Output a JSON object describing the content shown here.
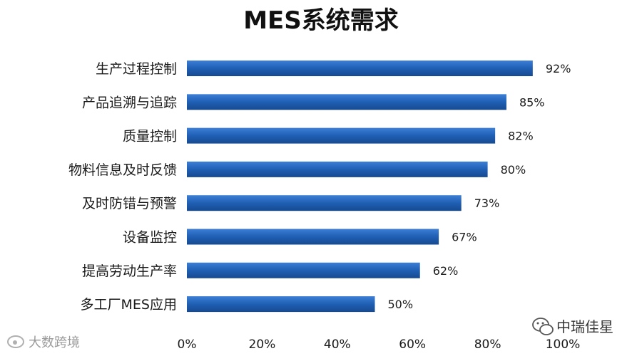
{
  "chart_data": {
    "type": "bar",
    "orientation": "horizontal",
    "title": "MES系统需求",
    "categories": [
      "生产过程控制",
      "产品追溯与追踪",
      "质量控制",
      "物料信息及时反馈",
      "及时防错与预警",
      "设备监控",
      "提高劳动生产率",
      "多工厂MES应用"
    ],
    "values": [
      92,
      85,
      82,
      80,
      73,
      67,
      62,
      50
    ],
    "value_labels": [
      "92%",
      "85%",
      "82%",
      "80%",
      "73%",
      "67%",
      "62%",
      "50%"
    ],
    "xlim": [
      0,
      100
    ],
    "xticks": [
      0,
      20,
      40,
      60,
      80,
      100
    ],
    "xtick_labels": [
      "0%",
      "20%",
      "40%",
      "60%",
      "80%",
      "100%"
    ],
    "grid": false,
    "bar_color": "#1f5fb4"
  },
  "watermarks": {
    "left": "大数跨境",
    "right": "中瑞佳星"
  }
}
